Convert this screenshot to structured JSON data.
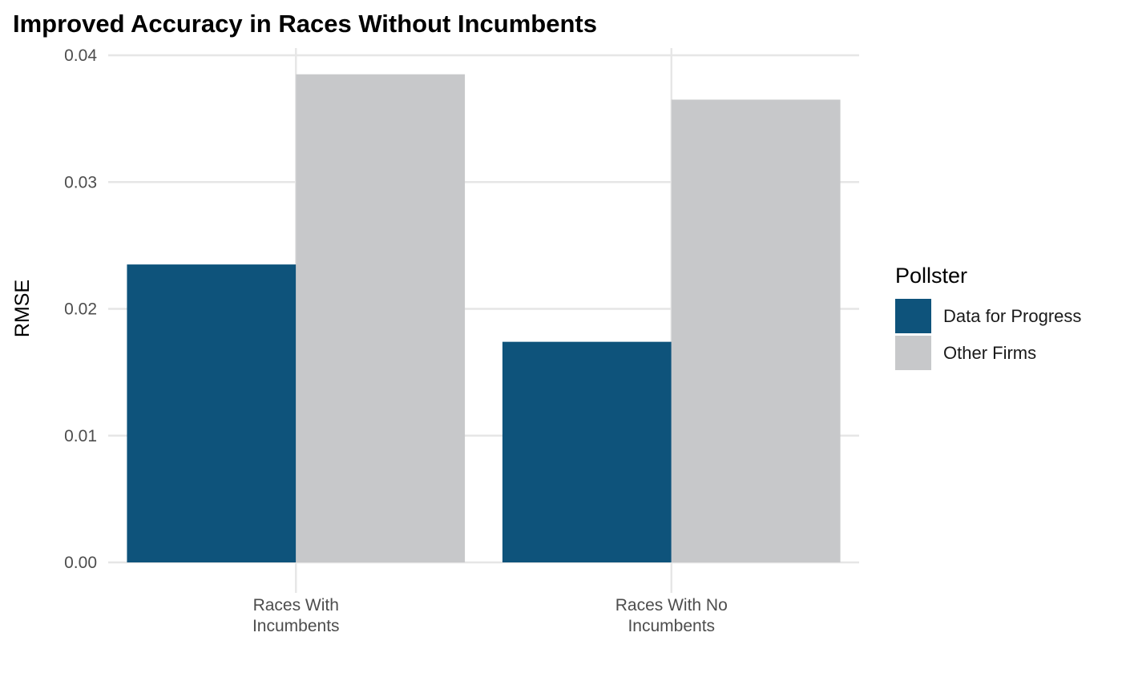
{
  "chart_data": {
    "type": "bar",
    "title": "Improved Accuracy in Races Without Incumbents",
    "xlabel": "",
    "ylabel": "RMSE",
    "categories": [
      [
        "Races With",
        "Incumbents"
      ],
      [
        "Races With No",
        "Incumbents"
      ]
    ],
    "series": [
      {
        "name": "Data for Progress",
        "color": "#0e537b",
        "values": [
          0.0235,
          0.0174
        ]
      },
      {
        "name": "Other Firms",
        "color": "#c7c8ca",
        "values": [
          0.0385,
          0.0365
        ]
      }
    ],
    "ylim": [
      0,
      0.04
    ],
    "yticks": [
      "0.00",
      "0.01",
      "0.02",
      "0.03",
      "0.04"
    ],
    "grid": true,
    "legend": {
      "title": "Pollster",
      "placement": "right"
    }
  }
}
